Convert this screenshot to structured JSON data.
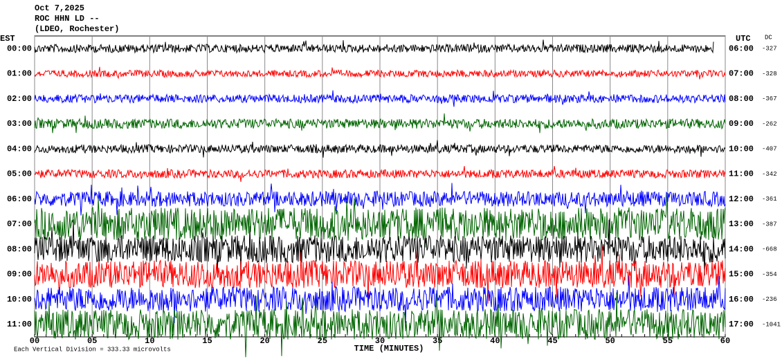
{
  "header": {
    "date": "Oct 7,2025",
    "station": "ROC HHN LD --",
    "network": "(LDEO, Rochester)"
  },
  "chart_data": {
    "type": "helicorder",
    "left_axis_label": "EST",
    "right_axis_label": "UTC",
    "dc_label": "DC",
    "rows": [
      {
        "est": "00:00",
        "utc": "06:00",
        "dc": "-327"
      },
      {
        "est": "01:00",
        "utc": "07:00",
        "dc": "-328"
      },
      {
        "est": "02:00",
        "utc": "08:00",
        "dc": "-367"
      },
      {
        "est": "03:00",
        "utc": "09:00",
        "dc": "-262"
      },
      {
        "est": "04:00",
        "utc": "10:00",
        "dc": "-407"
      },
      {
        "est": "05:00",
        "utc": "11:00",
        "dc": "-342"
      },
      {
        "est": "06:00",
        "utc": "12:00",
        "dc": "-361"
      },
      {
        "est": "07:00",
        "utc": "13:00",
        "dc": "-387"
      },
      {
        "est": "08:00",
        "utc": "14:00",
        "dc": "-668"
      },
      {
        "est": "09:00",
        "utc": "15:00",
        "dc": "-354"
      },
      {
        "est": "10:00",
        "utc": "16:00",
        "dc": "-236"
      },
      {
        "est": "11:00",
        "utc": "17:00",
        "dc": "-1041"
      }
    ],
    "trace_colors": [
      "#000000",
      "#ff0000",
      "#0000ff",
      "#006400"
    ],
    "xlabel": "TIME (MINUTES)",
    "xlim": [
      0,
      60
    ],
    "xticks": [
      {
        "value": 0,
        "label": "00"
      },
      {
        "value": 5,
        "label": "05"
      },
      10,
      15,
      20,
      25,
      30,
      35,
      40,
      45,
      50,
      55,
      60
    ],
    "footer": "Each Vertical Division = 333.33 microvolts"
  }
}
